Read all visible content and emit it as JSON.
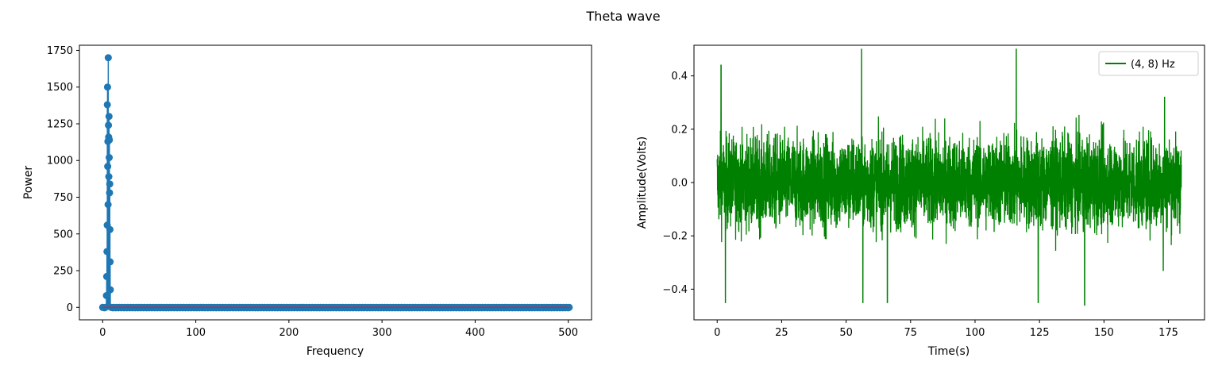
{
  "figure": {
    "title": "Theta wave"
  },
  "chart_data": [
    {
      "type": "stem",
      "title": "",
      "xlabel": "Frequency",
      "ylabel": "Power",
      "xlim": [
        -25,
        525
      ],
      "ylim": [
        -85,
        1785
      ],
      "xticks": [
        0,
        100,
        200,
        300,
        400,
        500
      ],
      "yticks": [
        0,
        250,
        500,
        750,
        1000,
        1250,
        1500,
        1750
      ],
      "colors": {
        "stem": "#1f77b4",
        "baseline": "#d62728"
      },
      "grid": false,
      "x_range": [
        0,
        501
      ],
      "peak_band": [
        4,
        8
      ],
      "points": [
        [
          4.0,
          80
        ],
        [
          4.3,
          210
        ],
        [
          4.6,
          380
        ],
        [
          4.9,
          560
        ],
        [
          5.0,
          1380
        ],
        [
          5.2,
          1500
        ],
        [
          5.4,
          960
        ],
        [
          5.6,
          1130
        ],
        [
          5.8,
          700
        ],
        [
          6.0,
          1700
        ],
        [
          6.2,
          1240
        ],
        [
          6.4,
          1160
        ],
        [
          6.6,
          890
        ],
        [
          6.8,
          1300
        ],
        [
          7.0,
          1020
        ],
        [
          7.2,
          1140
        ],
        [
          7.4,
          780
        ],
        [
          7.6,
          840
        ],
        [
          7.8,
          530
        ],
        [
          8.0,
          310
        ],
        [
          8.2,
          120
        ]
      ]
    },
    {
      "type": "line",
      "title": "",
      "xlabel": "Time(s)",
      "ylabel": "Amplitude(Volts)",
      "xlim": [
        -9,
        189
      ],
      "ylim": [
        -0.515,
        0.515
      ],
      "xticks": [
        0,
        25,
        50,
        75,
        100,
        125,
        150,
        175
      ],
      "yticks": [
        -0.4,
        -0.2,
        0.0,
        0.2,
        0.4
      ],
      "tick_labels_y": [
        "−0.4",
        "−0.2",
        "0.0",
        "0.2",
        "0.4"
      ],
      "x_range": [
        0,
        180
      ],
      "grid": false,
      "legend": {
        "position": "top-right"
      },
      "series": [
        {
          "name": "(4, 8) Hz",
          "color": "#008000"
        }
      ],
      "annotated_peaks": [
        [
          1.5,
          0.44
        ],
        [
          3.2,
          -0.45
        ],
        [
          56,
          0.5
        ],
        [
          56.5,
          -0.45
        ],
        [
          66,
          -0.45
        ],
        [
          116,
          0.5
        ],
        [
          124.5,
          -0.45
        ],
        [
          142.5,
          -0.46
        ],
        [
          173.5,
          0.32
        ],
        [
          173,
          -0.33
        ]
      ]
    }
  ]
}
